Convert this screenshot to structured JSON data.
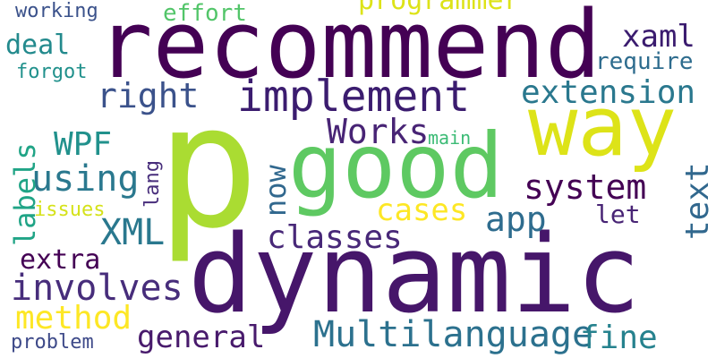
{
  "words": {
    "recommend": "recommend",
    "dynamic": "dynamic",
    "p": "p",
    "good": "good",
    "way": "way",
    "implement": "implement",
    "extension": "extension",
    "programmer": "programmer",
    "xaml": "xaml",
    "require": "require",
    "effort": "effort",
    "working": "working",
    "deal": "deal",
    "forgot": "forgot",
    "right": "right",
    "works": "Works",
    "main": "main",
    "wpf": "WPF",
    "using": "using",
    "system": "system",
    "cases": "cases",
    "app": "app",
    "issues": "issues",
    "xml": "XML",
    "classes": "classes",
    "let": "let",
    "extra": "extra",
    "involves": "involves",
    "method": "method",
    "general": "general",
    "multilanguage": "Multilanguage",
    "fine": "fine",
    "problem": "problem",
    "labels": "labels",
    "now": "now",
    "lang": "lang",
    "text": "text"
  },
  "colors": {
    "background": "#ffffff",
    "palette": "viridis"
  }
}
